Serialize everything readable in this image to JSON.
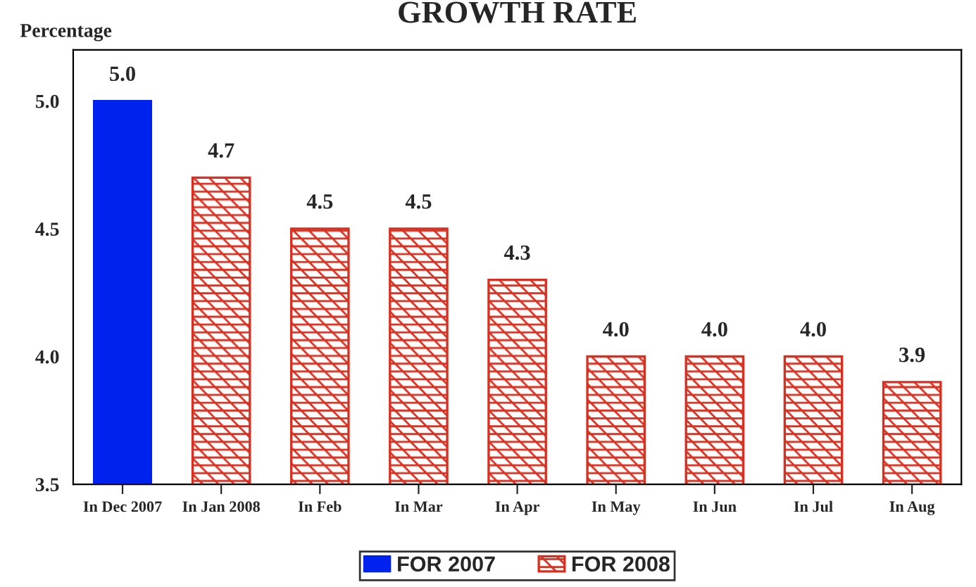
{
  "chart_data": {
    "type": "bar",
    "title": "GROWTH RATE",
    "ylabel": "Percentage",
    "categories": [
      "In Dec 2007",
      "In Jan 2008",
      "In Feb",
      "In Mar",
      "In Apr",
      "In May",
      "In Jun",
      "In Jul",
      "In Aug"
    ],
    "series": [
      {
        "name": "FOR 2007",
        "color": "#0022ee",
        "values": [
          5.0,
          null,
          null,
          null,
          null,
          null,
          null,
          null,
          null
        ],
        "value_labels": [
          "5.0",
          null,
          null,
          null,
          null,
          null,
          null,
          null,
          null
        ]
      },
      {
        "name": "FOR 2008",
        "color": "#d83020",
        "values": [
          null,
          4.7,
          4.5,
          4.5,
          4.3,
          4.0,
          4.0,
          4.0,
          3.9
        ],
        "value_labels": [
          null,
          "4.7",
          "4.5",
          "4.5",
          "4.3",
          "4.0",
          "4.0",
          "4.0",
          "3.9"
        ]
      }
    ],
    "ylim": [
      3.5,
      5.2
    ],
    "yticks": [
      3.5,
      {
        "value": 4,
        "label": "4.0"
      },
      4.5,
      {
        "value": 5,
        "label": "5.0"
      }
    ],
    "legend": "bottom",
    "grid": false
  }
}
